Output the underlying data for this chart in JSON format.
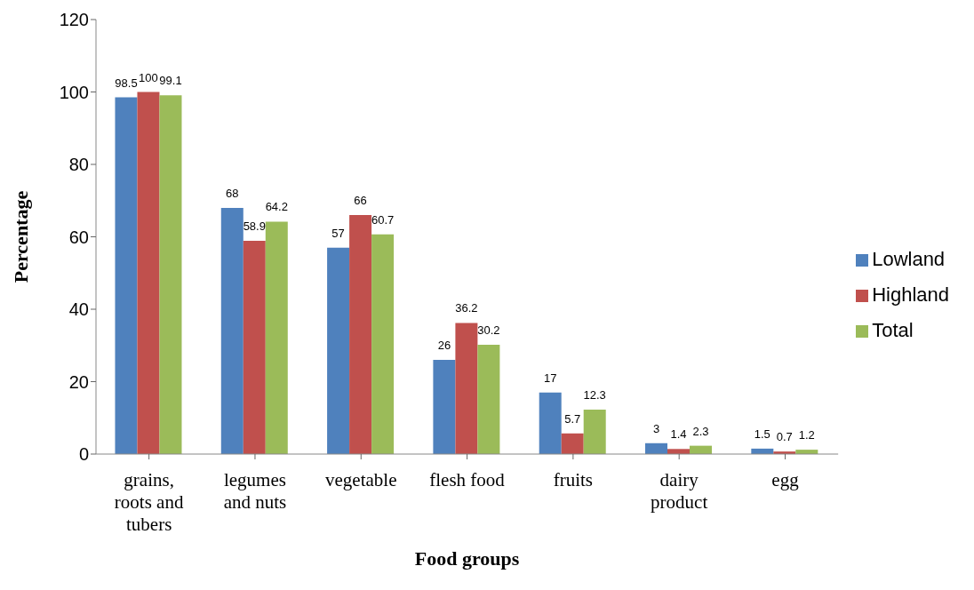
{
  "chart_data": {
    "type": "bar",
    "xlabel": "Food groups",
    "ylabel": "Percentage",
    "categories": [
      "grains, roots and tubers",
      "legumes and nuts",
      "vegetable",
      "flesh food",
      "fruits",
      "dairy product",
      "egg"
    ],
    "series": [
      {
        "name": "Lowland",
        "color": "#4f81bd",
        "values": [
          98.5,
          68,
          57,
          26,
          17,
          3,
          1.5
        ]
      },
      {
        "name": "Highland",
        "color": "#c0504d",
        "values": [
          100,
          58.9,
          66,
          36.2,
          5.7,
          1.4,
          0.7
        ]
      },
      {
        "name": "Total",
        "color": "#9bbb59",
        "values": [
          99.1,
          64.2,
          60.7,
          30.2,
          12.3,
          2.3,
          1.2
        ]
      }
    ],
    "ylim": [
      0,
      120
    ],
    "yticks": [
      0,
      20,
      40,
      60,
      80,
      100,
      120
    ],
    "grid": false,
    "legend": "right",
    "data_labels": true
  }
}
